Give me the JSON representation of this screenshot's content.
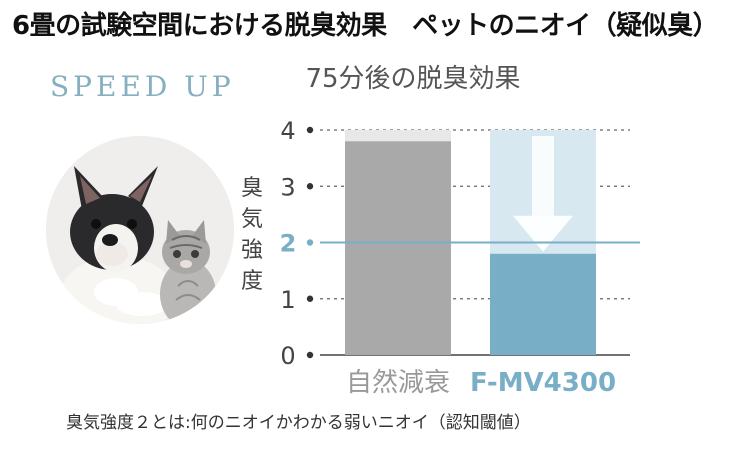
{
  "header": {
    "title": "6畳の試験空間における脱臭効果　ペットのニオイ（疑似臭）"
  },
  "badge": {
    "speed_text": "SPEED UP"
  },
  "photo": {
    "icon": "dog-and-cat-photo"
  },
  "footnote": {
    "text": "臭気強度２とは:何のニオイかわかる弱いニオイ（認知閾値）"
  },
  "colors": {
    "natural_bar": "#a9a9a9",
    "product_bar": "#78afc6",
    "product_bar_light": "#d7e8f0",
    "threshold_line": "#78afc6",
    "bar_top": "#e8e8e8"
  },
  "chart_data": {
    "type": "bar",
    "title": "75分後の脱臭効果",
    "ylabel": "臭気強度",
    "ylim": [
      0,
      4
    ],
    "yticks": [
      "0",
      "1",
      "2",
      "3",
      "4"
    ],
    "highlight_tick": "2",
    "categories": [
      "自然減衰",
      "F-MV4300"
    ],
    "values": [
      3.8,
      1.8
    ],
    "initial_value": 4,
    "threshold": 2,
    "grid": true
  }
}
